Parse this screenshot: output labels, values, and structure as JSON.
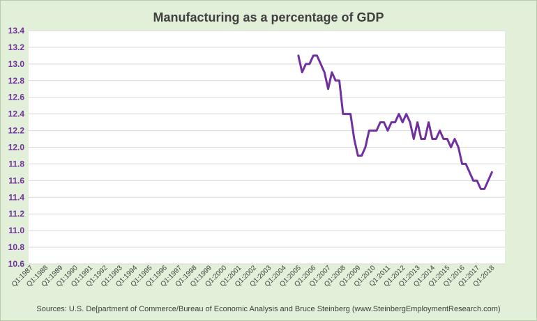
{
  "chart_data": {
    "type": "line",
    "title": "Manufacturing as a percentage of GDP",
    "xlabel": "",
    "ylabel": "",
    "ylim": [
      10.6,
      13.4
    ],
    "ytick_labels": [
      "13.4",
      "13.2",
      "13.0",
      "12.8",
      "12.6",
      "12.4",
      "12.2",
      "12.0",
      "11.8",
      "11.6",
      "11.4",
      "11.2",
      "11.0",
      "10.8",
      "10.6"
    ],
    "categories": [
      "Q1:1987",
      "Q1:1988",
      "Q1:1989",
      "Q1:1990",
      "Q1:1991",
      "Q1:1992",
      "Q1:1993",
      "Q1:1994",
      "Q1:1995",
      "Q1:1996",
      "Q1:1997",
      "Q1:1998",
      "Q1:1999",
      "Q1:2000",
      "Q1:2001",
      "Q1:2002",
      "Q1:2003",
      "Q1:2004",
      "Q1:2005",
      "Q1:2006",
      "Q1:2007",
      "Q1:2008",
      "Q1:2009",
      "Q1:2010",
      "Q1:2011",
      "Q1:2012",
      "Q1:2013",
      "Q1:2014",
      "Q1:2015",
      "Q1:2016",
      "Q1:2017",
      "Q1:2018"
    ],
    "series": [
      {
        "color": "#7030a0",
        "points": [
          [
            "Q1:2005",
            13.1
          ],
          [
            "Q2:2005",
            12.9
          ],
          [
            "Q3:2005",
            13.0
          ],
          [
            "Q4:2005",
            13.0
          ],
          [
            "Q1:2006",
            13.1
          ],
          [
            "Q2:2006",
            13.1
          ],
          [
            "Q3:2006",
            13.0
          ],
          [
            "Q4:2006",
            12.9
          ],
          [
            "Q1:2007",
            12.7
          ],
          [
            "Q2:2007",
            12.9
          ],
          [
            "Q3:2007",
            12.8
          ],
          [
            "Q4:2007",
            12.8
          ],
          [
            "Q1:2008",
            12.4
          ],
          [
            "Q2:2008",
            12.4
          ],
          [
            "Q3:2008",
            12.4
          ],
          [
            "Q4:2008",
            12.1
          ],
          [
            "Q1:2009",
            11.9
          ],
          [
            "Q2:2009",
            11.9
          ],
          [
            "Q3:2009",
            12.0
          ],
          [
            "Q4:2009",
            12.2
          ],
          [
            "Q1:2010",
            12.2
          ],
          [
            "Q2:2010",
            12.2
          ],
          [
            "Q3:2010",
            12.3
          ],
          [
            "Q4:2010",
            12.3
          ],
          [
            "Q1:2011",
            12.2
          ],
          [
            "Q2:2011",
            12.3
          ],
          [
            "Q3:2011",
            12.3
          ],
          [
            "Q4:2011",
            12.4
          ],
          [
            "Q1:2012",
            12.3
          ],
          [
            "Q2:2012",
            12.4
          ],
          [
            "Q3:2012",
            12.3
          ],
          [
            "Q4:2012",
            12.1
          ],
          [
            "Q1:2013",
            12.3
          ],
          [
            "Q2:2013",
            12.1
          ],
          [
            "Q3:2013",
            12.1
          ],
          [
            "Q4:2013",
            12.3
          ],
          [
            "Q1:2014",
            12.1
          ],
          [
            "Q2:2014",
            12.1
          ],
          [
            "Q3:2014",
            12.2
          ],
          [
            "Q4:2014",
            12.1
          ],
          [
            "Q1:2015",
            12.1
          ],
          [
            "Q2:2015",
            12.0
          ],
          [
            "Q3:2015",
            12.1
          ],
          [
            "Q4:2015",
            12.0
          ],
          [
            "Q1:2016",
            11.8
          ],
          [
            "Q2:2016",
            11.8
          ],
          [
            "Q3:2016",
            11.7
          ],
          [
            "Q4:2016",
            11.6
          ],
          [
            "Q1:2017",
            11.6
          ],
          [
            "Q2:2017",
            11.5
          ],
          [
            "Q3:2017",
            11.5
          ],
          [
            "Q4:2017",
            11.6
          ],
          [
            "Q1:2018",
            11.7
          ]
        ]
      }
    ],
    "grid": true,
    "legend": "none"
  },
  "footer": {
    "source": "Sources: U.S. De[partment of Commerce/Bureau of Economic Analysis and Bruce Steinberg (www.SteinbergEmploymentResearch.com)"
  }
}
